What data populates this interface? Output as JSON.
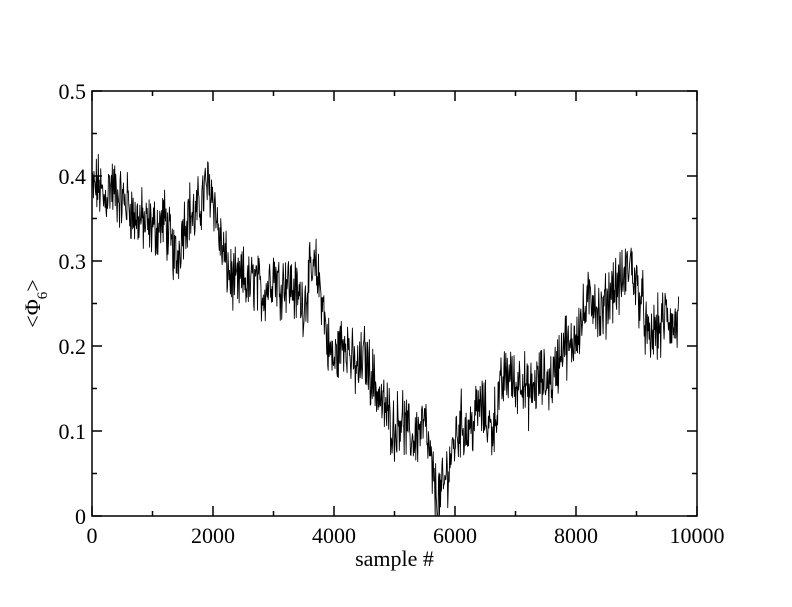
{
  "chart_data": {
    "type": "line",
    "xlabel": "sample #",
    "ylabel": {
      "prefix": "<Φ",
      "subscript": "6",
      "suffix": ">"
    },
    "xlim": [
      0,
      10000
    ],
    "ylim": [
      0,
      0.5
    ],
    "xticks": [
      0,
      2000,
      4000,
      6000,
      8000,
      10000
    ],
    "xtick_labels": [
      "0",
      "2000",
      "4000",
      "6000",
      "8000",
      "10000"
    ],
    "yticks": [
      0,
      0.1,
      0.2,
      0.3,
      0.4,
      0.5
    ],
    "ytick_labels": [
      "0",
      "0.1",
      "0.2",
      "0.3",
      "0.4",
      "0.5"
    ],
    "x_minor_step": 1000,
    "y_minor_step": 0.05,
    "grid": false,
    "line_color": "#000000",
    "series": [
      {
        "x": [
          0,
          100,
          200,
          300,
          400,
          500,
          600,
          700,
          800,
          900,
          1000,
          1100,
          1200,
          1300,
          1400,
          1500,
          1600,
          1700,
          1800,
          1900,
          2000,
          2100,
          2200,
          2300,
          2400,
          2500,
          2600,
          2700,
          2800,
          2900,
          3000,
          3100,
          3200,
          3300,
          3400,
          3500,
          3600,
          3700,
          3800,
          3900,
          4000,
          4100,
          4200,
          4300,
          4400,
          4500,
          4600,
          4700,
          4800,
          4900,
          5000,
          5100,
          5200,
          5300,
          5400,
          5500,
          5600,
          5700,
          5800,
          5900,
          6000,
          6100,
          6200,
          6300,
          6400,
          6500,
          6600,
          6700,
          6800,
          6900,
          7000,
          7100,
          7200,
          7300,
          7400,
          7500,
          7600,
          7700,
          7800,
          7900,
          8000,
          8100,
          8200,
          8300,
          8400,
          8500,
          8600,
          8700,
          8800,
          8900,
          9000,
          9100,
          9200,
          9300,
          9400,
          9500,
          9600,
          9700
        ],
        "values": [
          0.38,
          0.39,
          0.37,
          0.39,
          0.38,
          0.37,
          0.37,
          0.35,
          0.35,
          0.34,
          0.34,
          0.34,
          0.35,
          0.32,
          0.3,
          0.34,
          0.36,
          0.35,
          0.37,
          0.39,
          0.38,
          0.33,
          0.3,
          0.28,
          0.27,
          0.28,
          0.27,
          0.28,
          0.26,
          0.27,
          0.29,
          0.27,
          0.28,
          0.27,
          0.26,
          0.25,
          0.28,
          0.29,
          0.26,
          0.2,
          0.18,
          0.2,
          0.21,
          0.18,
          0.17,
          0.19,
          0.17,
          0.15,
          0.13,
          0.12,
          0.1,
          0.12,
          0.1,
          0.09,
          0.1,
          0.11,
          0.06,
          0.02,
          0.03,
          0.06,
          0.09,
          0.11,
          0.1,
          0.11,
          0.13,
          0.12,
          0.1,
          0.13,
          0.16,
          0.17,
          0.15,
          0.17,
          0.14,
          0.15,
          0.16,
          0.16,
          0.16,
          0.18,
          0.21,
          0.19,
          0.22,
          0.23,
          0.25,
          0.26,
          0.23,
          0.25,
          0.27,
          0.27,
          0.28,
          0.3,
          0.27,
          0.25,
          0.2,
          0.22,
          0.22,
          0.24,
          0.22,
          0.23
        ]
      }
    ]
  }
}
